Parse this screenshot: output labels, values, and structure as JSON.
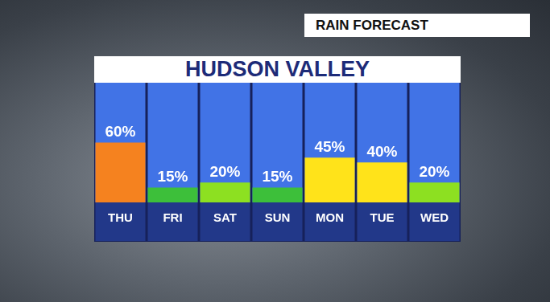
{
  "chart_data": {
    "type": "bar",
    "title": "HUDSON VALLEY",
    "subtitle": "RAIN FORECAST",
    "categories": [
      "THU",
      "FRI",
      "SAT",
      "SUN",
      "MON",
      "TUE",
      "WED"
    ],
    "values": [
      60,
      15,
      20,
      15,
      45,
      40,
      20
    ],
    "value_labels": [
      "60%",
      "15%",
      "20%",
      "15%",
      "45%",
      "40%",
      "20%"
    ],
    "colors": [
      "#f5821f",
      "#3dbf3a",
      "#8de021",
      "#3dbf3a",
      "#ffe31a",
      "#ffe31a",
      "#8de021"
    ],
    "ylim": [
      0,
      120
    ],
    "yticks": [],
    "grid": false,
    "data_labels": true,
    "tick_labels": "x"
  }
}
